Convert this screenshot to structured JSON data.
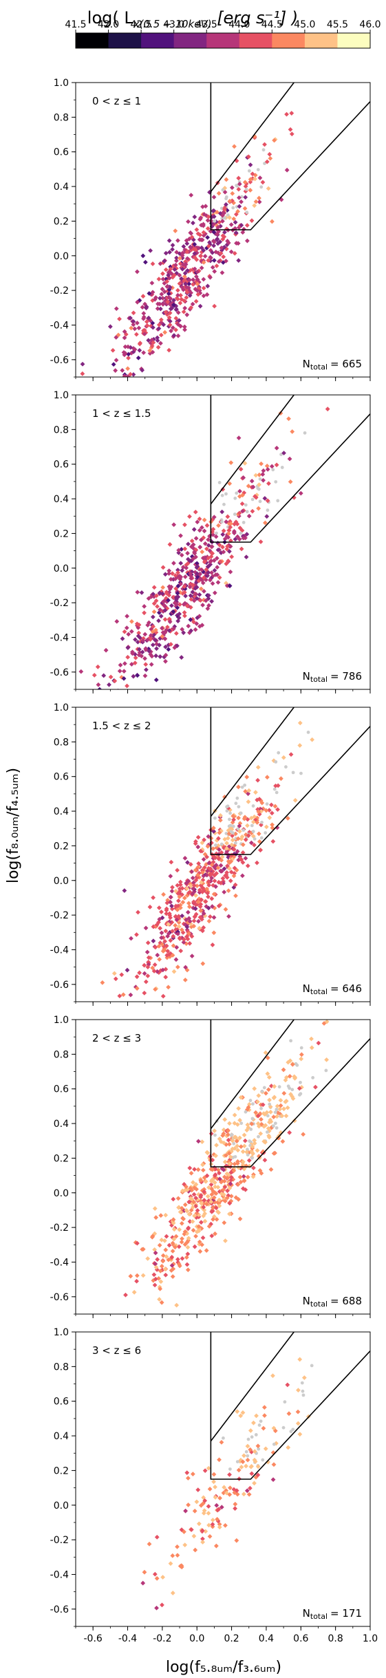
{
  "figure": {
    "ylabel": "log(f₈.₀ᵤₘ/f₄.₅ᵤₘ)",
    "xlabel": "log(f₅.₈ᵤₘ/f₃.₆ᵤₘ)"
  },
  "colorbar": {
    "title_main": "log( L",
    "title_sub": "x(0.5 − 10keV)",
    "title_unit": " [erg s⁻¹] )",
    "ticks": [
      "41.5",
      "42.0",
      "42.5",
      "43.0",
      "43.5",
      "44.0",
      "44.5",
      "45.0",
      "45.5",
      "46.0"
    ],
    "range": [
      41.5,
      46.0
    ],
    "colors": [
      "#000004",
      "#1d1147",
      "#51127c",
      "#822681",
      "#b63679",
      "#e65164",
      "#fb8861",
      "#fec287",
      "#fcfdbf"
    ]
  },
  "chart_data": [
    {
      "type": "scatter",
      "label": "0 < z ≤ 1",
      "ntotal_label": "N",
      "ntotal_sub": "total",
      "ntotal_value": "= 665",
      "xlim": [
        -0.7,
        1.0
      ],
      "ylim": [
        -0.7,
        1.0
      ],
      "xticks": [
        "-0.6",
        "-0.4",
        "-0.2",
        "0.0",
        "0.2",
        "0.4",
        "0.6",
        "0.8",
        "1.0"
      ],
      "yticks": [
        "-0.6",
        "-0.4",
        "-0.2",
        "0.0",
        "0.2",
        "0.4",
        "0.6",
        "0.8",
        "1.0"
      ],
      "center": [
        -0.05,
        -0.1
      ],
      "points_estimated": 665,
      "dominant_color": "#b63679",
      "agn_wedge": [
        [
          0.08,
          1.0
        ],
        [
          0.08,
          0.37
        ],
        [
          0.08,
          0.15
        ],
        [
          0.31,
          0.15
        ],
        [
          1.0,
          0.89
        ]
      ]
    },
    {
      "type": "scatter",
      "label": "1 < z ≤ 1.5",
      "ntotal_label": "N",
      "ntotal_sub": "total",
      "ntotal_value": "= 786",
      "xlim": [
        -0.7,
        1.0
      ],
      "ylim": [
        -0.7,
        1.0
      ],
      "xticks": [
        "-0.6",
        "-0.4",
        "-0.2",
        "0.0",
        "0.2",
        "0.4",
        "0.6",
        "0.8",
        "1.0"
      ],
      "yticks": [
        "-0.6",
        "-0.4",
        "-0.2",
        "0.0",
        "0.2",
        "0.4",
        "0.6",
        "0.8",
        "1.0"
      ],
      "center": [
        -0.05,
        -0.1
      ],
      "points_estimated": 786,
      "dominant_color": "#b63679",
      "agn_wedge": [
        [
          0.08,
          1.0
        ],
        [
          0.08,
          0.37
        ],
        [
          0.08,
          0.15
        ],
        [
          0.31,
          0.15
        ],
        [
          1.0,
          0.89
        ]
      ]
    },
    {
      "type": "scatter",
      "label": "1.5 < z ≤ 2",
      "ntotal_label": "N",
      "ntotal_sub": "total",
      "ntotal_value": "= 646",
      "xlim": [
        -0.7,
        1.0
      ],
      "ylim": [
        -0.7,
        1.0
      ],
      "xticks": [
        "-0.6",
        "-0.4",
        "-0.2",
        "0.0",
        "0.2",
        "0.4",
        "0.6",
        "0.8",
        "1.0"
      ],
      "yticks": [
        "-0.6",
        "-0.4",
        "-0.2",
        "0.0",
        "0.2",
        "0.4",
        "0.6",
        "0.8",
        "1.0"
      ],
      "center": [
        0.05,
        0.0
      ],
      "points_estimated": 646,
      "dominant_color": "#e65164",
      "agn_wedge": [
        [
          0.08,
          1.0
        ],
        [
          0.08,
          0.37
        ],
        [
          0.08,
          0.15
        ],
        [
          0.31,
          0.15
        ],
        [
          1.0,
          0.89
        ]
      ]
    },
    {
      "type": "scatter",
      "label": "2 < z ≤ 3",
      "ntotal_label": "N",
      "ntotal_sub": "total",
      "ntotal_value": "= 688",
      "xlim": [
        -0.7,
        1.0
      ],
      "ylim": [
        -0.7,
        1.0
      ],
      "xticks": [
        "-0.6",
        "-0.4",
        "-0.2",
        "0.0",
        "0.2",
        "0.4",
        "0.6",
        "0.8",
        "1.0"
      ],
      "yticks": [
        "-0.6",
        "-0.4",
        "-0.2",
        "0.0",
        "0.2",
        "0.4",
        "0.6",
        "0.8",
        "1.0"
      ],
      "center": [
        0.15,
        0.1
      ],
      "points_estimated": 688,
      "dominant_color": "#fb8861",
      "agn_wedge": [
        [
          0.08,
          1.0
        ],
        [
          0.08,
          0.37
        ],
        [
          0.08,
          0.15
        ],
        [
          0.31,
          0.15
        ],
        [
          1.0,
          0.89
        ]
      ]
    },
    {
      "type": "scatter",
      "label": "3 < z ≤ 6",
      "ntotal_label": "N",
      "ntotal_sub": "total",
      "ntotal_value": "= 171",
      "xlim": [
        -0.7,
        1.0
      ],
      "ylim": [
        -0.7,
        1.0
      ],
      "xticks": [
        "-0.6",
        "-0.4",
        "-0.2",
        "0.0",
        "0.2",
        "0.4",
        "0.6",
        "0.8",
        "1.0"
      ],
      "yticks": [
        "-0.6",
        "-0.4",
        "-0.2",
        "0.0",
        "0.2",
        "0.4",
        "0.6",
        "0.8",
        "1.0"
      ],
      "center": [
        0.2,
        0.15
      ],
      "points_estimated": 171,
      "dominant_color": "#fb8861",
      "agn_wedge": [
        [
          0.08,
          1.0
        ],
        [
          0.08,
          0.37
        ],
        [
          0.08,
          0.15
        ],
        [
          0.31,
          0.15
        ],
        [
          1.0,
          0.89
        ]
      ]
    }
  ]
}
